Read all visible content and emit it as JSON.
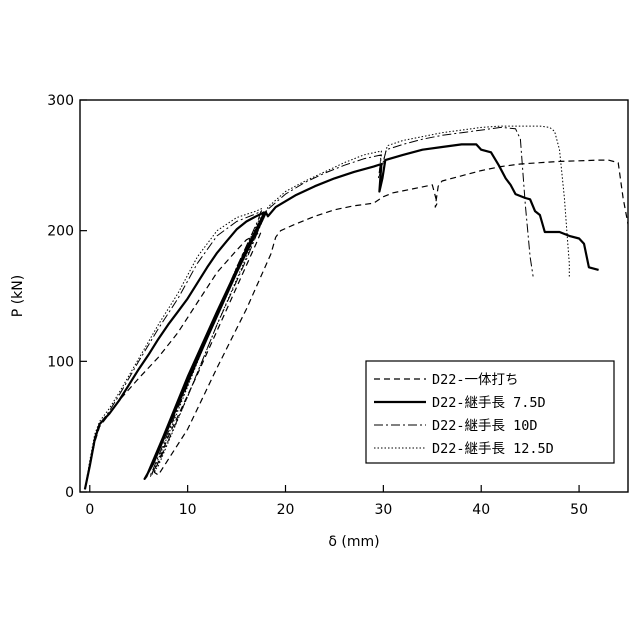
{
  "chart_data": {
    "type": "line",
    "xlabel": "δ (mm)",
    "ylabel": "P (kN)",
    "xlim": [
      -1,
      55
    ],
    "ylim": [
      0,
      300
    ],
    "xticks": [
      0,
      10,
      20,
      30,
      40,
      50
    ],
    "yticks": [
      0,
      100,
      200,
      300
    ],
    "grid": false,
    "legend_position": "bottom-right",
    "series": [
      {
        "name": "D22-一体打ち",
        "dash": "dashed",
        "stroke_width": 1.2,
        "x": [
          -0.5,
          0,
          0.5,
          1,
          2,
          3,
          5,
          7,
          9,
          11,
          13,
          15,
          16,
          17,
          17.5,
          17,
          14,
          11,
          8,
          7,
          6.6,
          7,
          10,
          13,
          16,
          18.5,
          19,
          19.5,
          21,
          23,
          25,
          27,
          29,
          30,
          31,
          33,
          35,
          35.5,
          35.3,
          35.6,
          36,
          38,
          40,
          42,
          44,
          46,
          48,
          50,
          52,
          53,
          54,
          54.5,
          55
        ],
        "y": [
          2,
          20,
          38,
          50,
          60,
          70,
          87,
          103,
          122,
          145,
          168,
          185,
          193,
          197,
          199,
          190,
          140,
          90,
          42,
          23,
          15,
          13,
          48,
          95,
          140,
          182,
          195,
          200,
          205,
          211,
          216,
          219,
          221,
          226,
          229,
          232,
          235,
          221,
          218,
          234,
          238,
          242,
          246,
          249,
          251,
          252,
          253,
          253.5,
          254,
          254,
          252,
          225,
          205
        ]
      },
      {
        "name": "D22-継手長 7.5D",
        "dash": "solid",
        "stroke_width": 2.2,
        "x": [
          -0.5,
          0,
          0.5,
          1,
          2,
          3,
          4,
          5,
          6,
          7,
          8,
          9,
          10,
          11,
          12,
          13,
          14,
          15,
          16,
          17,
          17.8,
          17.6,
          16,
          13,
          10,
          7.5,
          5.8,
          5.6,
          6.5,
          9,
          12,
          15,
          17.5,
          18,
          18.2,
          19,
          21,
          23,
          25,
          27,
          29,
          29.8,
          29.6,
          29.9,
          30.2,
          32,
          34,
          36,
          38,
          39.5,
          40,
          41,
          41.8,
          42.5,
          43,
          43.5,
          44.5,
          45,
          45.5,
          46,
          46.5,
          48,
          49,
          50,
          50.5,
          51,
          52
        ],
        "y": [
          2,
          20,
          40,
          52,
          60,
          70,
          82,
          94,
          105,
          117,
          128,
          138,
          148,
          160,
          172,
          183,
          192,
          201,
          207,
          211,
          214,
          210,
          186,
          138,
          88,
          42,
          12,
          10,
          22,
          67,
          118,
          168,
          206,
          214,
          211,
          218,
          227,
          234,
          240,
          245,
          249,
          251,
          230,
          240,
          254,
          258,
          262,
          264,
          266,
          266,
          262,
          260,
          250,
          240,
          235,
          228,
          225,
          224,
          215,
          212,
          199,
          199,
          196,
          194,
          190,
          172,
          170
        ]
      },
      {
        "name": "D22-継手長 10D",
        "dash": "dashdot",
        "stroke_width": 1.0,
        "x": [
          -0.5,
          0,
          0.5,
          1,
          2,
          3,
          5,
          7,
          9,
          11,
          13,
          15,
          17,
          17.5,
          17.2,
          15,
          12,
          9,
          6.5,
          6.2,
          7,
          10,
          13,
          16,
          17.6,
          18,
          20,
          22,
          24,
          26,
          28,
          29.8,
          29.5,
          29.9,
          30.3,
          32,
          34,
          36,
          38,
          40,
          42,
          43.5,
          44,
          44.5,
          45,
          45.3
        ],
        "y": [
          2,
          22,
          42,
          52,
          62,
          74,
          100,
          125,
          148,
          175,
          196,
          207,
          213,
          215,
          208,
          172,
          118,
          64,
          18,
          13,
          22,
          73,
          128,
          178,
          207,
          215,
          228,
          237,
          244,
          250,
          255,
          258,
          240,
          250,
          262,
          266,
          270,
          273,
          275,
          277,
          279,
          278,
          270,
          220,
          180,
          165
        ]
      },
      {
        "name": "D22-継手長 12.5D",
        "dash": "dotted",
        "stroke_width": 1.0,
        "x": [
          -0.5,
          0,
          0.5,
          1,
          2,
          3,
          5,
          7,
          9,
          11,
          13,
          15,
          17,
          17.6,
          17.4,
          15,
          12,
          9,
          6.5,
          6.2,
          7,
          10,
          13,
          16,
          17.8,
          18.2,
          20,
          22,
          24,
          26,
          28,
          29.8,
          29.6,
          30,
          30.4,
          32,
          34,
          36,
          38,
          40,
          42,
          44,
          46,
          47,
          47.5,
          48,
          48.5,
          48.8,
          49,
          49
        ],
        "y": [
          2,
          24,
          44,
          54,
          64,
          76,
          102,
          128,
          152,
          180,
          200,
          210,
          215,
          217,
          210,
          172,
          118,
          62,
          16,
          12,
          20,
          73,
          128,
          180,
          210,
          218,
          230,
          238,
          245,
          252,
          258,
          261,
          245,
          253,
          265,
          269,
          272,
          275,
          277,
          279,
          280,
          280,
          280,
          279,
          276,
          262,
          225,
          195,
          175,
          164
        ]
      }
    ]
  }
}
